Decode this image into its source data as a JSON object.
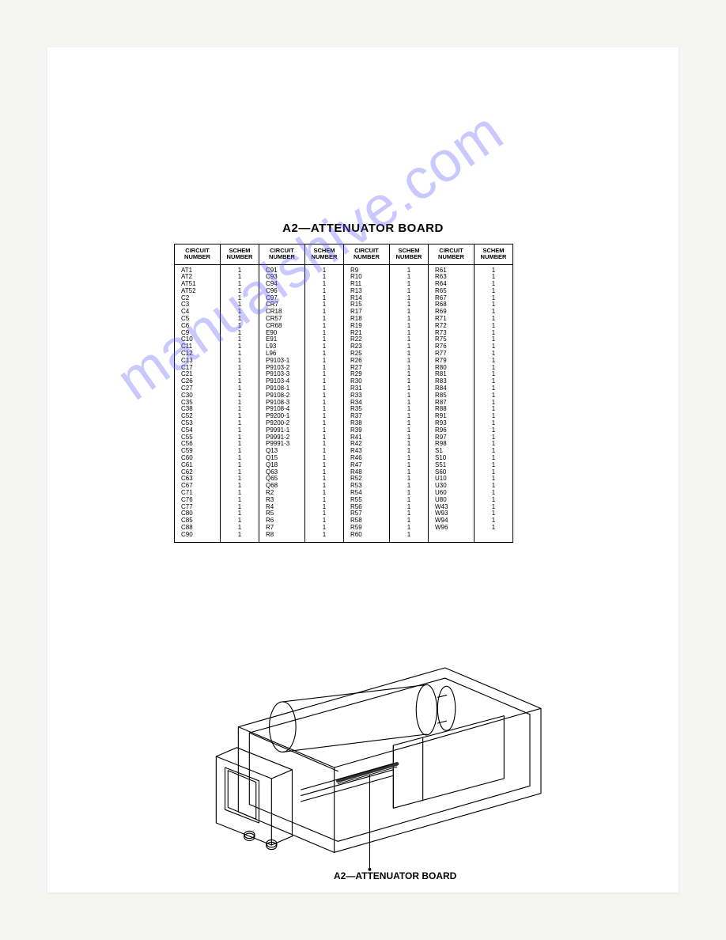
{
  "title": "A2—ATTENUATOR BOARD",
  "headers": [
    "CIRCUIT NUMBER",
    "SCHEM NUMBER",
    "CIRCUIT NUMBER",
    "SCHEM NUMBER",
    "CIRCUIT NUMBER",
    "SCHEM NUMBER",
    "CIRCUIT NUMBER",
    "SCHEM NUMBER"
  ],
  "columns": [
    [
      "AT1",
      "AT2",
      "AT51",
      "AT52",
      "C2",
      "C3",
      "C4",
      "C5",
      "C6",
      "C9",
      "C10",
      "C11",
      "C12",
      "C13",
      "C17",
      "C21",
      "C26",
      "C27",
      "C30",
      "C35",
      "C38",
      "C52",
      "C53",
      "C54",
      "C55",
      "C56",
      "C59",
      "C60",
      "C61",
      "C62",
      "C63",
      "C67",
      "C71",
      "C76",
      "C77",
      "C80",
      "C85",
      "C88",
      "C90"
    ],
    [
      "C91",
      "C93",
      "C94",
      "C96",
      "C97",
      "CR7",
      "CR18",
      "CR57",
      "CR68",
      "E90",
      "E91",
      "L93",
      "L96",
      "P9103-1",
      "P9103-2",
      "P9103-3",
      "P9103-4",
      "P9108-1",
      "P9108-2",
      "P9108-3",
      "P9108-4",
      "P9200-1",
      "P9200-2",
      "P9991-1",
      "P9991-2",
      "P9991-3",
      "Q13",
      "Q15",
      "Q18",
      "Q63",
      "Q65",
      "Q68",
      "R2",
      "R3",
      "R4",
      "R5",
      "R6",
      "R7",
      "R8"
    ],
    [
      "R9",
      "R10",
      "R11",
      "R13",
      "R14",
      "R15",
      "R17",
      "R18",
      "R19",
      "R21",
      "R22",
      "R23",
      "R25",
      "R26",
      "R27",
      "R29",
      "R30",
      "R31",
      "R33",
      "R34",
      "R35",
      "R37",
      "R38",
      "R39",
      "R41",
      "R42",
      "R43",
      "R46",
      "R47",
      "R48",
      "R52",
      "R53",
      "R54",
      "R55",
      "R56",
      "R57",
      "R58",
      "R59",
      "R60"
    ],
    [
      "R61",
      "R63",
      "R64",
      "R65",
      "R67",
      "R68",
      "R69",
      "R71",
      "R72",
      "R73",
      "R75",
      "R76",
      "R77",
      "R79",
      "R80",
      "R81",
      "R83",
      "R84",
      "R85",
      "R87",
      "R88",
      "R91",
      "R93",
      "R96",
      "R97",
      "R98",
      "S1",
      "S10",
      "S51",
      "S60",
      "U10",
      "U30",
      "U60",
      "U80",
      "W43",
      "W93",
      "W94",
      "W96",
      ""
    ]
  ],
  "schem_value": "1",
  "diagram_label": "A2—ATTENUATOR BOARD",
  "watermark": "manualshive.com",
  "colors": {
    "page_bg": "#ffffff",
    "body_bg": "#f5f5f3",
    "border": "#000000",
    "watermark": "rgba(100,100,255,0.35)"
  }
}
